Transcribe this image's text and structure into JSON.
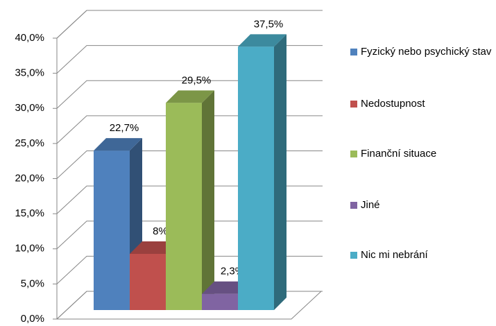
{
  "chart_data": {
    "type": "bar3d",
    "series": [
      {
        "name": "Fyzický nebo psychický stav",
        "color": "#4f81bd",
        "values": [
          22.7
        ],
        "value_labels": [
          "22,7%"
        ]
      },
      {
        "name": "Nedostupnost",
        "color": "#c0504d",
        "values": [
          8
        ],
        "value_labels": [
          "8%"
        ]
      },
      {
        "name": "Finanční situace",
        "color": "#9bbb59",
        "values": [
          29.5
        ],
        "value_labels": [
          "29,5%"
        ]
      },
      {
        "name": "Jiné",
        "color": "#8064a2",
        "values": [
          2.3
        ],
        "value_labels": [
          "2,3%"
        ]
      },
      {
        "name": "Nic mi nebrání",
        "color": "#4bacc6",
        "values": [
          37.5
        ],
        "value_labels": [
          "37,5%"
        ]
      }
    ],
    "ylim": [
      0,
      40
    ],
    "yticks": [
      {
        "value": 0,
        "label": "0,0%"
      },
      {
        "value": 5,
        "label": "5,0%"
      },
      {
        "value": 10,
        "label": "10,0%"
      },
      {
        "value": 15,
        "label": "15,0%"
      },
      {
        "value": 20,
        "label": "20,0%"
      },
      {
        "value": 25,
        "label": "25,0%"
      },
      {
        "value": 30,
        "label": "30,0%"
      },
      {
        "value": 35,
        "label": "35,0%"
      },
      {
        "value": 40,
        "label": "40,0%"
      }
    ],
    "grid": true,
    "legend": "right"
  }
}
